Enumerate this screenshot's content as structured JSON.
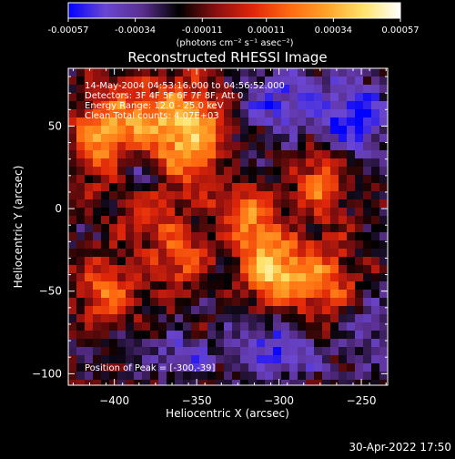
{
  "colorbar": {
    "tick_labels": [
      "-0.00057",
      "-0.00034",
      "-0.00011",
      "0.00011",
      "0.00034",
      "0.00057"
    ],
    "units": "(photons cm⁻² s⁻¹ asec⁻²)",
    "range": [
      -0.00057,
      0.00057
    ]
  },
  "chart_data": {
    "type": "heatmap",
    "title": "Reconstructed RHESSI Image",
    "xlabel": "Heliocentric X (arcsec)",
    "ylabel": "Heliocentric Y (arcsec)",
    "xlim": [
      -428,
      -234
    ],
    "ylim": [
      -107,
      85
    ],
    "x_ticks": [
      -400,
      -350,
      -300,
      -250
    ],
    "y_ticks": [
      50,
      0,
      -50,
      -100
    ],
    "x_tick_labels": [
      "−400",
      "−350",
      "−300",
      "−250"
    ],
    "y_tick_labels": [
      "50",
      "0",
      "−50",
      "−100"
    ],
    "annotations": [
      "14-May-2004 04:53:16.000 to 04:56:52.000",
      "Detectors: 3F 4F 5F 6F 7F 8F, Att 0",
      "Energy Range: 12.0 - 25.0 keV",
      "Clean     Total counts: 4.07E+03"
    ],
    "peak_label": "Position of Peak = [-300,-39]",
    "peak": [
      -300,
      -39
    ],
    "colormap": [
      "#0000ff",
      "#6a46d2",
      "#5a2f8f",
      "#000000",
      "#8a0f10",
      "#e0260a",
      "#ff6a10",
      "#ffa228",
      "#ffe36a",
      "#ffffff"
    ],
    "intensity_blobs": [
      {
        "x": -355,
        "y": 45,
        "amp": 0.00055,
        "sx": 18,
        "sy": 22
      },
      {
        "x": -390,
        "y": 55,
        "amp": 0.0003,
        "sx": 16,
        "sy": 14
      },
      {
        "x": -410,
        "y": 40,
        "amp": 0.00034,
        "sx": 12,
        "sy": 18
      },
      {
        "x": -300,
        "y": -39,
        "amp": 0.00057,
        "sx": 14,
        "sy": 14
      },
      {
        "x": -315,
        "y": -10,
        "amp": 0.0004,
        "sx": 10,
        "sy": 14
      },
      {
        "x": -275,
        "y": 15,
        "amp": 0.00036,
        "sx": 10,
        "sy": 14
      },
      {
        "x": -270,
        "y": -45,
        "amp": 0.0003,
        "sx": 12,
        "sy": 18
      },
      {
        "x": -360,
        "y": -30,
        "amp": 0.00034,
        "sx": 12,
        "sy": 12
      },
      {
        "x": -405,
        "y": -50,
        "amp": 0.00035,
        "sx": 14,
        "sy": 14
      },
      {
        "x": -380,
        "y": -5,
        "amp": 0.00026,
        "sx": 12,
        "sy": 10
      },
      {
        "x": -330,
        "y": 5,
        "amp": 0.0002,
        "sx": 8,
        "sy": 8
      },
      {
        "x": -300,
        "y": 65,
        "amp": -0.0003,
        "sx": 20,
        "sy": 14
      },
      {
        "x": -255,
        "y": 55,
        "amp": -0.00038,
        "sx": 14,
        "sy": 16
      },
      {
        "x": -300,
        "y": -85,
        "amp": -0.00032,
        "sx": 18,
        "sy": 12
      },
      {
        "x": -360,
        "y": -90,
        "amp": -0.00024,
        "sx": 14,
        "sy": 10
      },
      {
        "x": -245,
        "y": -75,
        "amp": -0.00022,
        "sx": 10,
        "sy": 14
      },
      {
        "x": -385,
        "y": 20,
        "amp": -0.0002,
        "sx": 10,
        "sy": 8
      },
      {
        "x": -330,
        "y": 25,
        "amp": -0.00018,
        "sx": 8,
        "sy": 10
      }
    ]
  },
  "footer": {
    "timestamp": "30-Apr-2022 17:50"
  }
}
